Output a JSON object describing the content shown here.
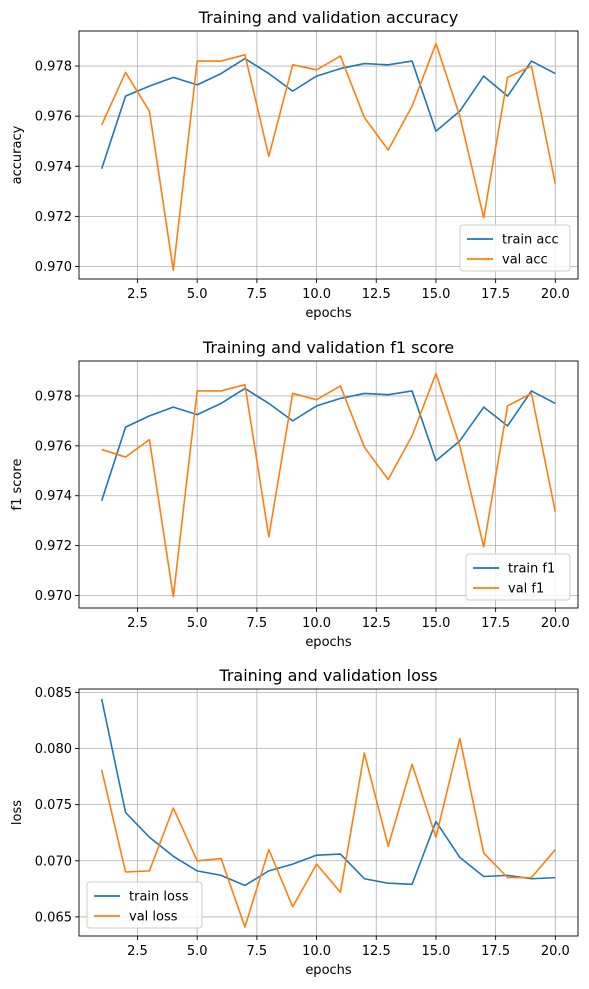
{
  "colors": {
    "train": "#1f77b4",
    "val": "#ff7f0e",
    "grid": "#b0b0b0"
  },
  "chart_data": [
    {
      "type": "line",
      "title": "Training and validation accuracy",
      "xlabel": "epochs",
      "ylabel": "accuracy",
      "xlim": [
        0.05,
        20.95
      ],
      "ylim": [
        0.9695,
        0.9794
      ],
      "xticks": [
        2.5,
        5.0,
        7.5,
        10.0,
        12.5,
        15.0,
        17.5,
        20.0
      ],
      "xtick_labels": [
        "2.5",
        "5.0",
        "7.5",
        "10.0",
        "12.5",
        "15.0",
        "17.5",
        "20.0"
      ],
      "yticks": [
        0.97,
        0.972,
        0.974,
        0.976,
        0.978
      ],
      "ytick_labels": [
        "0.970",
        "0.972",
        "0.974",
        "0.976",
        "0.978"
      ],
      "grid": true,
      "legend_position": "lower right",
      "x": [
        1,
        2,
        3,
        4,
        5,
        6,
        7,
        8,
        9,
        10,
        11,
        12,
        13,
        14,
        15,
        16,
        17,
        18,
        19,
        20
      ],
      "series": [
        {
          "name": "train acc",
          "color": "#1f77b4",
          "values": [
            0.9739,
            0.9768,
            0.9772,
            0.97755,
            0.97725,
            0.9777,
            0.9783,
            0.9777,
            0.977,
            0.9776,
            0.9779,
            0.9781,
            0.97805,
            0.9782,
            0.9754,
            0.9762,
            0.9776,
            0.9768,
            0.9782,
            0.9777
          ]
        },
        {
          "name": "val acc",
          "color": "#ff7f0e",
          "values": [
            0.97565,
            0.97775,
            0.9762,
            0.96985,
            0.9782,
            0.9782,
            0.97845,
            0.9744,
            0.97805,
            0.97785,
            0.9784,
            0.97595,
            0.97465,
            0.9764,
            0.9789,
            0.976,
            0.97195,
            0.97755,
            0.978,
            0.9733
          ]
        }
      ]
    },
    {
      "type": "line",
      "title": "Training and validation f1 score",
      "xlabel": "epochs",
      "ylabel": "f1 score",
      "xlim": [
        0.05,
        20.95
      ],
      "ylim": [
        0.9695,
        0.9794
      ],
      "xticks": [
        2.5,
        5.0,
        7.5,
        10.0,
        12.5,
        15.0,
        17.5,
        20.0
      ],
      "xtick_labels": [
        "2.5",
        "5.0",
        "7.5",
        "10.0",
        "12.5",
        "15.0",
        "17.5",
        "20.0"
      ],
      "yticks": [
        0.97,
        0.972,
        0.974,
        0.976,
        0.978
      ],
      "ytick_labels": [
        "0.970",
        "0.972",
        "0.974",
        "0.976",
        "0.978"
      ],
      "grid": true,
      "legend_position": "lower right",
      "x": [
        1,
        2,
        3,
        4,
        5,
        6,
        7,
        8,
        9,
        10,
        11,
        12,
        13,
        14,
        15,
        16,
        17,
        18,
        19,
        20
      ],
      "series": [
        {
          "name": "train f1",
          "color": "#1f77b4",
          "values": [
            0.9738,
            0.97675,
            0.9772,
            0.97755,
            0.97725,
            0.9777,
            0.9783,
            0.9777,
            0.977,
            0.9776,
            0.9779,
            0.9781,
            0.97805,
            0.9782,
            0.9754,
            0.9762,
            0.97755,
            0.9768,
            0.9782,
            0.9777
          ]
        },
        {
          "name": "val f1",
          "color": "#ff7f0e",
          "values": [
            0.97585,
            0.97555,
            0.97625,
            0.96995,
            0.9782,
            0.9782,
            0.97845,
            0.97235,
            0.9781,
            0.97785,
            0.9784,
            0.97595,
            0.97465,
            0.9764,
            0.9789,
            0.976,
            0.97195,
            0.9776,
            0.9781,
            0.97335
          ]
        }
      ]
    },
    {
      "type": "line",
      "title": "Training and validation loss",
      "xlabel": "epochs",
      "ylabel": "loss",
      "xlim": [
        0.05,
        20.95
      ],
      "ylim": [
        0.0633,
        0.0853
      ],
      "xticks": [
        2.5,
        5.0,
        7.5,
        10.0,
        12.5,
        15.0,
        17.5,
        20.0
      ],
      "xtick_labels": [
        "2.5",
        "5.0",
        "7.5",
        "10.0",
        "12.5",
        "15.0",
        "17.5",
        "20.0"
      ],
      "yticks": [
        0.065,
        0.07,
        0.075,
        0.08,
        0.085
      ],
      "ytick_labels": [
        "0.065",
        "0.070",
        "0.075",
        "0.080",
        "0.085"
      ],
      "grid": true,
      "legend_position": "lower left",
      "x": [
        1,
        2,
        3,
        4,
        5,
        6,
        7,
        8,
        9,
        10,
        11,
        12,
        13,
        14,
        15,
        16,
        17,
        18,
        19,
        20
      ],
      "series": [
        {
          "name": "train loss",
          "color": "#1f77b4",
          "values": [
            0.0844,
            0.0743,
            0.0721,
            0.0704,
            0.0691,
            0.0687,
            0.0678,
            0.0691,
            0.0697,
            0.0705,
            0.0706,
            0.0684,
            0.068,
            0.0679,
            0.0735,
            0.0703,
            0.0686,
            0.0687,
            0.0684,
            0.0685
          ]
        },
        {
          "name": "val loss",
          "color": "#ff7f0e",
          "values": [
            0.0781,
            0.069,
            0.0691,
            0.0747,
            0.07,
            0.0702,
            0.0641,
            0.071,
            0.0659,
            0.0697,
            0.0672,
            0.0796,
            0.0713,
            0.0786,
            0.0721,
            0.0809,
            0.0707,
            0.0685,
            0.0685,
            0.071
          ]
        }
      ]
    }
  ]
}
